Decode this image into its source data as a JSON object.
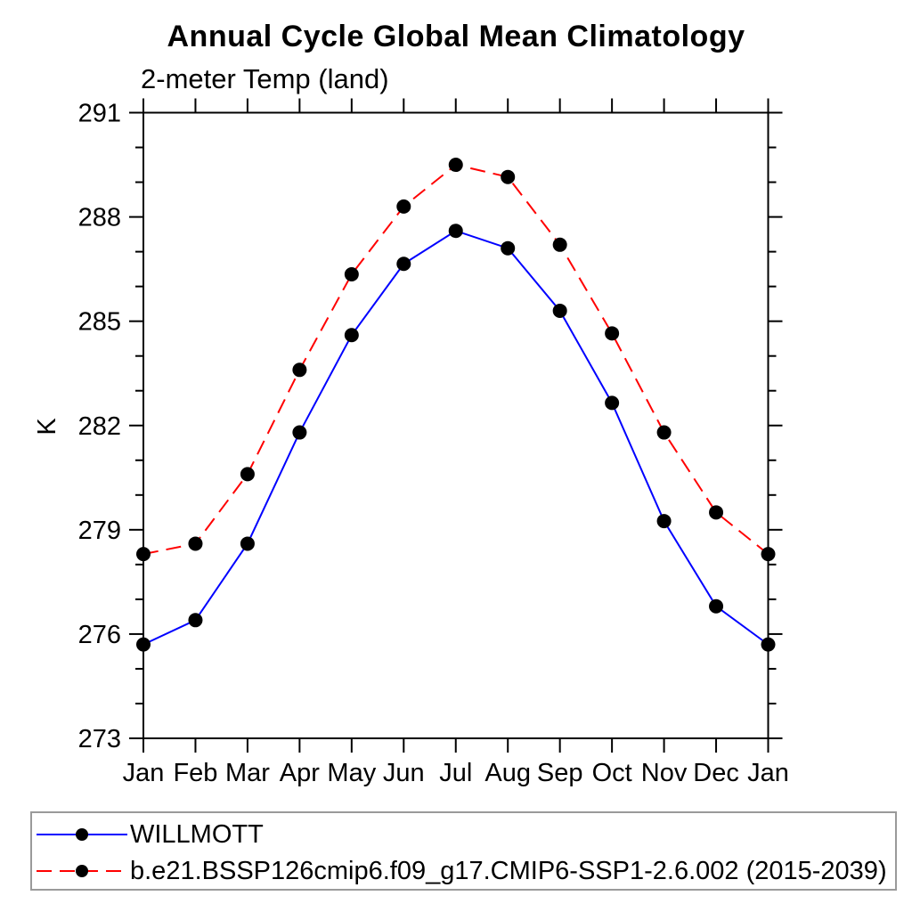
{
  "chart": {
    "title": "Annual Cycle Global Mean Climatology",
    "subtitle": "2-meter Temp (land)",
    "y_axis_label": "K"
  },
  "chart_data": {
    "type": "line",
    "title": "Annual Cycle Global Mean Climatology",
    "subtitle": "2-meter Temp (land)",
    "xlabel": "",
    "ylabel": "K",
    "x_categories": [
      "Jan",
      "Feb",
      "Mar",
      "Apr",
      "May",
      "Jun",
      "Jul",
      "Aug",
      "Sep",
      "Oct",
      "Nov",
      "Dec",
      "Jan"
    ],
    "ylim": [
      273,
      291
    ],
    "ytick_major_step": 3,
    "ytick_minor_step": 1,
    "grid": false,
    "legend_position": "bottom-box",
    "frame_color": "#000000",
    "legend_border_color": "#9a9a9a",
    "series": [
      {
        "name": "WILLMOTT",
        "color": "#0000ff",
        "line_style": "solid",
        "marker": "filled-circle",
        "marker_color": "#000000",
        "values": [
          275.7,
          276.4,
          278.6,
          281.8,
          284.6,
          286.65,
          287.6,
          287.1,
          285.3,
          282.65,
          279.25,
          276.8,
          275.7
        ]
      },
      {
        "name": "b.e21.BSSP126cmip6.f09_g17.CMIP6-SSP1-2.6.002 (2015-2039)",
        "color": "#ff0000",
        "line_style": "dashed",
        "marker": "filled-circle",
        "marker_color": "#000000",
        "values": [
          278.3,
          278.6,
          280.6,
          283.6,
          286.35,
          288.3,
          289.5,
          289.15,
          287.2,
          284.65,
          281.8,
          279.5,
          278.3
        ]
      }
    ]
  }
}
